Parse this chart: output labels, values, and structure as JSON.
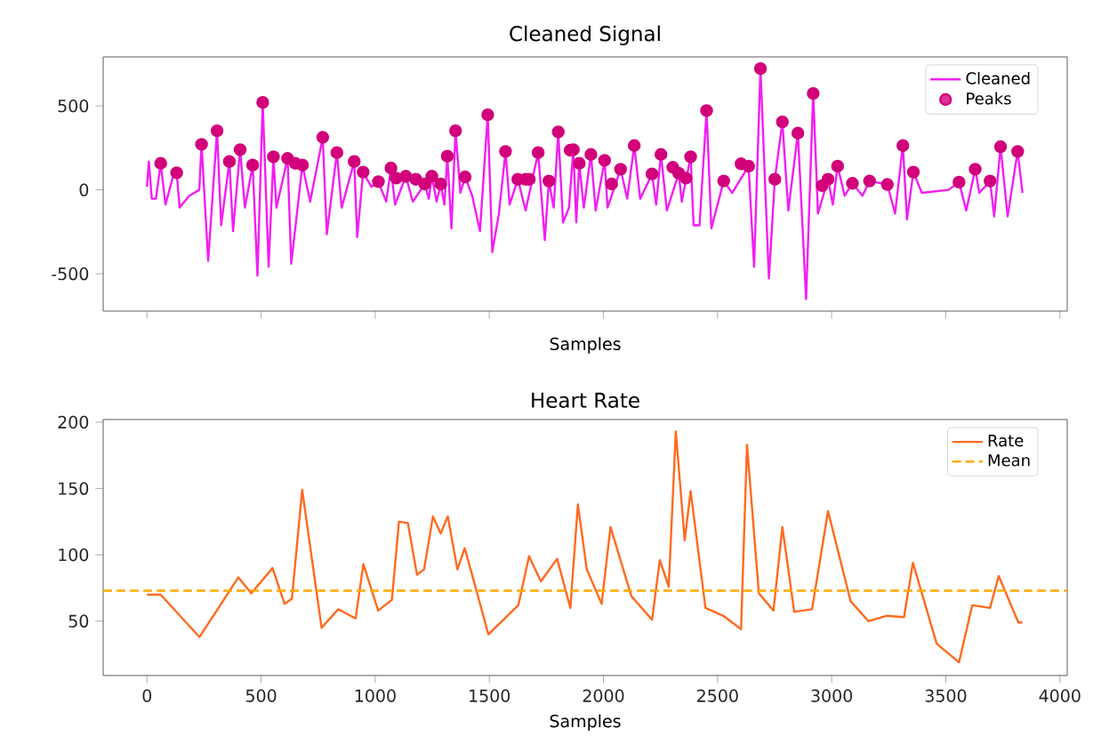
{
  "chart_data": [
    {
      "type": "line",
      "title": "Cleaned Signal",
      "xlabel": "Samples",
      "xlim": [
        -192,
        4032
      ],
      "xticks": [
        0,
        500,
        1000,
        1500,
        2000,
        2500,
        3000,
        3500,
        4000
      ],
      "ylim": [
        -722,
        792
      ],
      "yticks": [
        -500,
        0,
        500
      ],
      "tick_labels": "y",
      "legend": "top right",
      "series": [
        {
          "name": "Cleaned",
          "color": "#f21ef2",
          "line_style": "solid",
          "marker": "none",
          "x": [
            0,
            8,
            21,
            39,
            60,
            81,
            112,
            130,
            143,
            185,
            229,
            239,
            268,
            307,
            325,
            361,
            377,
            408,
            429,
            463,
            484,
            507,
            533,
            554,
            567,
            616,
            632,
            681,
            715,
            770,
            788,
            832,
            853,
            908,
            921,
            947,
            983,
            1014,
            1048,
            1069,
            1087,
            1134,
            1165,
            1217,
            1235,
            1248,
            1269,
            1287,
            1303,
            1316,
            1334,
            1352,
            1373,
            1394,
            1425,
            1459,
            1493,
            1513,
            1542,
            1571,
            1589,
            1625,
            1659,
            1714,
            1743,
            1761,
            1782,
            1802,
            1823,
            1849,
            1868,
            1881,
            1894,
            1914,
            1945,
            1966,
            2005,
            2018,
            2075,
            2104,
            2135,
            2161,
            2213,
            2231,
            2252,
            2278,
            2330,
            2343,
            2382,
            2395,
            2421,
            2452,
            2473,
            2527,
            2564,
            2636,
            2660,
            2688,
            2725,
            2751,
            2784,
            2810,
            2852,
            2888,
            2919,
            2940,
            2984,
            3005,
            3026,
            3057,
            3091,
            3135,
            3166,
            3244,
            3278,
            3312,
            3330,
            3358,
            3395,
            3512,
            3558,
            3590,
            3629,
            3647,
            3694,
            3712,
            3740,
            3771,
            3815,
            3836
          ],
          "values": [
            18,
            169,
            -53,
            -53,
            158,
            -88,
            70,
            102,
            -106,
            -35,
            0,
            271,
            -423,
            352,
            -211,
            169,
            -246,
            239,
            -106,
            148,
            -511,
            521,
            -458,
            197,
            -106,
            187,
            -440,
            148,
            -70,
            313,
            -264,
            222,
            -106,
            169,
            -282,
            106,
            18,
            49,
            -70,
            130,
            -88,
            81,
            -70,
            35,
            -53,
            81,
            -70,
            35,
            -88,
            201,
            -229,
            352,
            -18,
            77,
            -35,
            -246,
            447,
            -370,
            -141,
            229,
            -88,
            63,
            -123,
            222,
            -299,
            53,
            -106,
            345,
            -194,
            -106,
            239,
            -194,
            158,
            -106,
            211,
            -123,
            176,
            -106,
            123,
            -53,
            264,
            -53,
            95,
            -88,
            211,
            -123,
            99,
            -70,
            197,
            -211,
            -211,
            472,
            -229,
            53,
            -18,
            141,
            -458,
            722,
            -528,
            63,
            405,
            -123,
            338,
            -651,
            574,
            -141,
            63,
            -88,
            141,
            -35,
            39,
            -35,
            53,
            32,
            -141,
            264,
            -176,
            106,
            -18,
            0,
            46,
            -123,
            123,
            -18,
            53,
            -158,
            257,
            -158,
            229,
            -18
          ]
        },
        {
          "name": "Peaks",
          "type": "scatter",
          "color": "#d1007a",
          "marker": "circle",
          "x": [
            60,
            130,
            239,
            307,
            361,
            408,
            463,
            507,
            554,
            616,
            650,
            681,
            770,
            832,
            908,
            947,
            1014,
            1069,
            1092,
            1134,
            1178,
            1217,
            1248,
            1287,
            1316,
            1352,
            1394,
            1493,
            1571,
            1625,
            1659,
            1675,
            1714,
            1761,
            1802,
            1854,
            1868,
            1894,
            1945,
            2005,
            2036,
            2075,
            2135,
            2213,
            2252,
            2304,
            2330,
            2361,
            2382,
            2452,
            2527,
            2603,
            2636,
            2688,
            2751,
            2784,
            2852,
            2919,
            2958,
            2984,
            3026,
            3091,
            3166,
            3244,
            3312,
            3358,
            3558,
            3629,
            3694,
            3740,
            3815
          ],
          "values": [
            158,
            102,
            271,
            352,
            169,
            239,
            148,
            521,
            197,
            187,
            158,
            148,
            313,
            222,
            169,
            106,
            49,
            130,
            70,
            81,
            63,
            35,
            81,
            35,
            201,
            352,
            77,
            447,
            229,
            63,
            63,
            63,
            222,
            53,
            345,
            236,
            239,
            158,
            211,
            176,
            35,
            123,
            264,
            95,
            211,
            134,
            99,
            70,
            197,
            472,
            53,
            155,
            141,
            722,
            63,
            405,
            338,
            574,
            25,
            63,
            141,
            39,
            53,
            32,
            264,
            106,
            46,
            123,
            53,
            257,
            229
          ]
        }
      ]
    },
    {
      "type": "line",
      "title": "Heart Rate",
      "xlabel": "Samples",
      "xlim": [
        -192,
        4032
      ],
      "xticks": [
        0,
        500,
        1000,
        1500,
        2000,
        2500,
        3000,
        3500,
        4000
      ],
      "ylim": [
        9,
        202
      ],
      "yticks": [
        50,
        100,
        150,
        200
      ],
      "legend": "top right",
      "series": [
        {
          "name": "Rate",
          "color": "#ff6a1f",
          "line_style": "solid",
          "marker": "none",
          "x": [
            0,
            60,
            230,
            400,
            457,
            550,
            603,
            635,
            680,
            765,
            838,
            914,
            948,
            1013,
            1073,
            1104,
            1143,
            1183,
            1214,
            1253,
            1287,
            1318,
            1360,
            1392,
            1418,
            1496,
            1627,
            1674,
            1726,
            1797,
            1855,
            1888,
            1927,
            1992,
            2031,
            2122,
            2213,
            2247,
            2286,
            2317,
            2356,
            2382,
            2447,
            2525,
            2603,
            2629,
            2681,
            2745,
            2784,
            2836,
            2914,
            2984,
            3083,
            3161,
            3239,
            3317,
            3356,
            3460,
            3558,
            3616,
            3694,
            3732,
            3818,
            3836
          ],
          "values": [
            70,
            70,
            38,
            83,
            71,
            90,
            63,
            67,
            149,
            45,
            59,
            52,
            93,
            58,
            66,
            125,
            124,
            85,
            89,
            129,
            116,
            129,
            89,
            105,
            89,
            40,
            62,
            99,
            80,
            97,
            60,
            138,
            89,
            63,
            121,
            69,
            51,
            96,
            76,
            193,
            111,
            148,
            60,
            54,
            44,
            183,
            71,
            58,
            121,
            57,
            59,
            133,
            65,
            50,
            54,
            53,
            94,
            33,
            19,
            62,
            60,
            84,
            49,
            49
          ]
        }
      ],
      "ref_lines": [
        {
          "axis": "y",
          "value": 73,
          "label": "Mean",
          "color": "#ffaa00",
          "line_style": "dashed"
        }
      ]
    }
  ]
}
